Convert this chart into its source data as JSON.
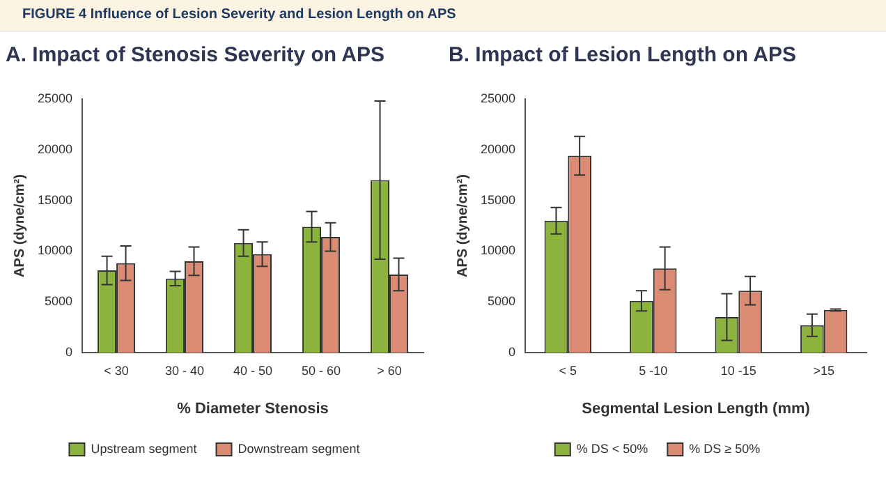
{
  "chart_data": [
    {
      "type": "bar",
      "title": "A. Impact of Stenosis Severity on APS",
      "annotations": [
        "FIGURE 4  Influence of Lesion Severity and Lesion Length on APS"
      ],
      "xlabel": "% Diameter Stenosis",
      "ylabel": "APS (dyne/cm²)",
      "categories": [
        "< 30",
        "30 - 40",
        "40 - 50",
        "50 - 60",
        "> 60"
      ],
      "series": [
        {
          "name": "Upstream segment",
          "color": "#8db33f",
          "values": [
            8100,
            7300,
            10800,
            12400,
            17000
          ],
          "errors": [
            1400,
            700,
            1300,
            1500,
            7800
          ]
        },
        {
          "name": "Downstream segment",
          "color": "#d98b73",
          "values": [
            8800,
            9000,
            9700,
            11400,
            7700
          ],
          "errors": [
            1700,
            1400,
            1200,
            1400,
            1600
          ]
        }
      ],
      "ylim": [
        0,
        25000
      ],
      "yticks": [
        0,
        5000,
        10000,
        15000,
        20000,
        25000
      ],
      "grid": false,
      "legend": "bottom"
    },
    {
      "type": "bar",
      "title": "B. Impact of Lesion Length on APS",
      "xlabel": "Segmental Lesion Length (mm)",
      "ylabel": "APS (dyne/cm²)",
      "categories": [
        "< 5",
        "5 -10",
        "10 -15",
        ">15"
      ],
      "series": [
        {
          "name": "% DS < 50%",
          "color": "#8db33f",
          "values": [
            13000,
            5100,
            3500,
            2700
          ],
          "errors": [
            1300,
            1000,
            2300,
            1100
          ]
        },
        {
          "name": "% DS ≥ 50%",
          "color": "#d98b73",
          "values": [
            19400,
            8300,
            6100,
            4200
          ],
          "errors": [
            1900,
            2100,
            1400,
            100
          ]
        }
      ],
      "ylim": [
        0,
        25000
      ],
      "yticks": [
        0,
        5000,
        10000,
        15000,
        20000,
        25000
      ],
      "grid": false,
      "legend": "bottom"
    }
  ]
}
